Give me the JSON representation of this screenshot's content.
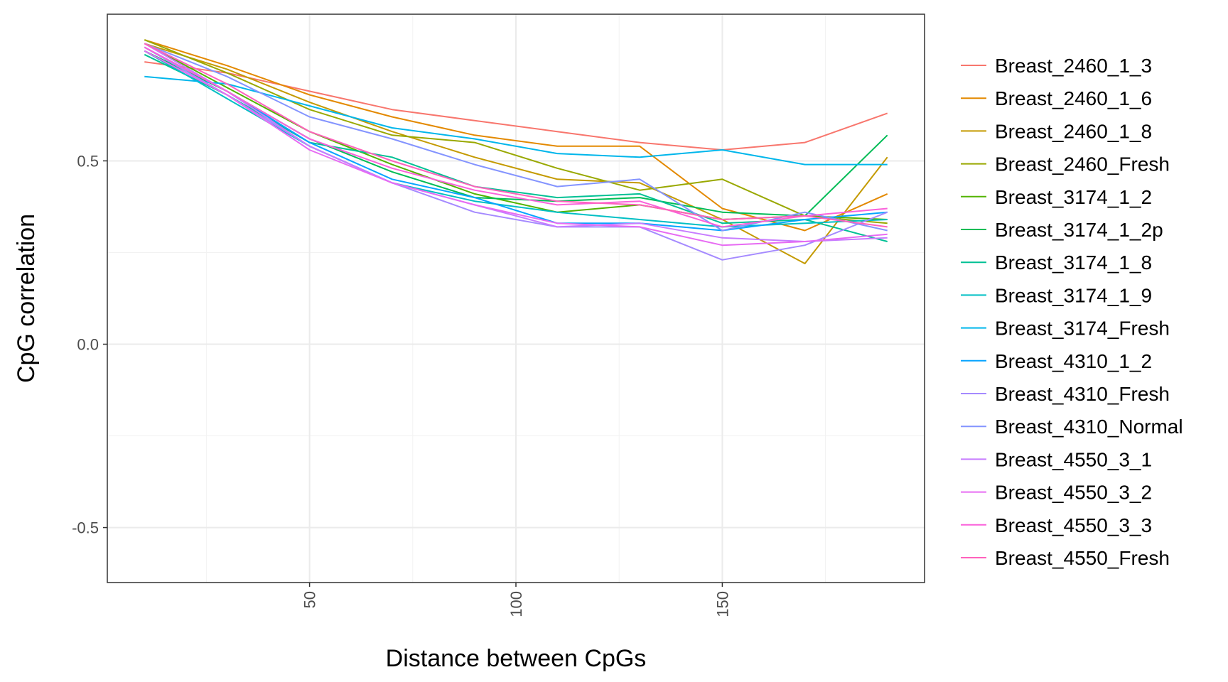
{
  "chart_data": {
    "type": "line",
    "title": "",
    "xlabel": "Distance between CpGs",
    "ylabel": "CpG correlation",
    "xlim": [
      1,
      199
    ],
    "ylim": [
      -0.65,
      0.9
    ],
    "xticks": [
      50,
      100,
      150
    ],
    "xtick_labels": [
      "50",
      "100",
      "150"
    ],
    "yticks": [
      -0.5,
      0.0,
      0.5
    ],
    "ytick_labels": [
      "-0.5",
      "0.0",
      "0.5"
    ],
    "grid": true,
    "legend_position": "right",
    "x": [
      10,
      30,
      50,
      70,
      90,
      110,
      130,
      150,
      170,
      190
    ],
    "series": [
      {
        "name": "Breast_2460_1_3",
        "color": "#F8766D",
        "values": [
          0.77,
          0.74,
          0.69,
          0.64,
          0.61,
          0.58,
          0.55,
          0.53,
          0.55,
          0.63
        ]
      },
      {
        "name": "Breast_2460_1_6",
        "color": "#E38900",
        "values": [
          0.83,
          0.76,
          0.68,
          0.62,
          0.57,
          0.54,
          0.54,
          0.37,
          0.31,
          0.41
        ]
      },
      {
        "name": "Breast_2460_1_8",
        "color": "#C49A00",
        "values": [
          0.82,
          0.75,
          0.66,
          0.58,
          0.51,
          0.45,
          0.44,
          0.34,
          0.22,
          0.51
        ]
      },
      {
        "name": "Breast_2460_Fresh",
        "color": "#99A800",
        "values": [
          0.83,
          0.74,
          0.64,
          0.57,
          0.55,
          0.48,
          0.42,
          0.45,
          0.35,
          0.33
        ]
      },
      {
        "name": "Breast_3174_1_2",
        "color": "#53B400",
        "values": [
          0.82,
          0.7,
          0.58,
          0.49,
          0.41,
          0.36,
          0.38,
          0.34,
          0.35,
          0.34
        ]
      },
      {
        "name": "Breast_3174_1_2p",
        "color": "#00BC56",
        "values": [
          0.8,
          0.69,
          0.56,
          0.47,
          0.4,
          0.39,
          0.4,
          0.36,
          0.35,
          0.57
        ]
      },
      {
        "name": "Breast_3174_1_8",
        "color": "#00C094",
        "values": [
          0.79,
          0.68,
          0.55,
          0.51,
          0.43,
          0.4,
          0.41,
          0.33,
          0.34,
          0.28
        ]
      },
      {
        "name": "Breast_3174_1_9",
        "color": "#00BFC4",
        "values": [
          0.8,
          0.67,
          0.54,
          0.44,
          0.39,
          0.36,
          0.34,
          0.32,
          0.33,
          0.34
        ]
      },
      {
        "name": "Breast_3174_Fresh",
        "color": "#00B6EB",
        "values": [
          0.73,
          0.71,
          0.65,
          0.59,
          0.56,
          0.52,
          0.51,
          0.53,
          0.49,
          0.49
        ]
      },
      {
        "name": "Breast_4310_1_2",
        "color": "#06A4FF",
        "values": [
          0.81,
          0.69,
          0.55,
          0.45,
          0.4,
          0.33,
          0.33,
          0.31,
          0.34,
          0.36
        ]
      },
      {
        "name": "Breast_4310_Fresh",
        "color": "#A58AFF",
        "values": [
          0.81,
          0.68,
          0.54,
          0.44,
          0.36,
          0.32,
          0.32,
          0.23,
          0.27,
          0.36
        ]
      },
      {
        "name": "Breast_4310_Normal",
        "color": "#8494FF",
        "values": [
          0.82,
          0.73,
          0.62,
          0.56,
          0.49,
          0.43,
          0.45,
          0.31,
          0.36,
          0.31
        ]
      },
      {
        "name": "Breast_4550_3_1",
        "color": "#C77CFF",
        "values": [
          0.82,
          0.69,
          0.54,
          0.44,
          0.38,
          0.32,
          0.33,
          0.29,
          0.28,
          0.29
        ]
      },
      {
        "name": "Breast_4550_3_2",
        "color": "#E76BF3",
        "values": [
          0.8,
          0.68,
          0.53,
          0.44,
          0.38,
          0.33,
          0.32,
          0.27,
          0.28,
          0.3
        ]
      },
      {
        "name": "Breast_4550_3_3",
        "color": "#FA62DB",
        "values": [
          0.81,
          0.69,
          0.56,
          0.48,
          0.42,
          0.38,
          0.39,
          0.32,
          0.35,
          0.37
        ]
      },
      {
        "name": "Breast_4550_Fresh",
        "color": "#FF62BC",
        "values": [
          0.82,
          0.71,
          0.58,
          0.5,
          0.43,
          0.39,
          0.38,
          0.34,
          0.35,
          0.32
        ]
      }
    ]
  }
}
